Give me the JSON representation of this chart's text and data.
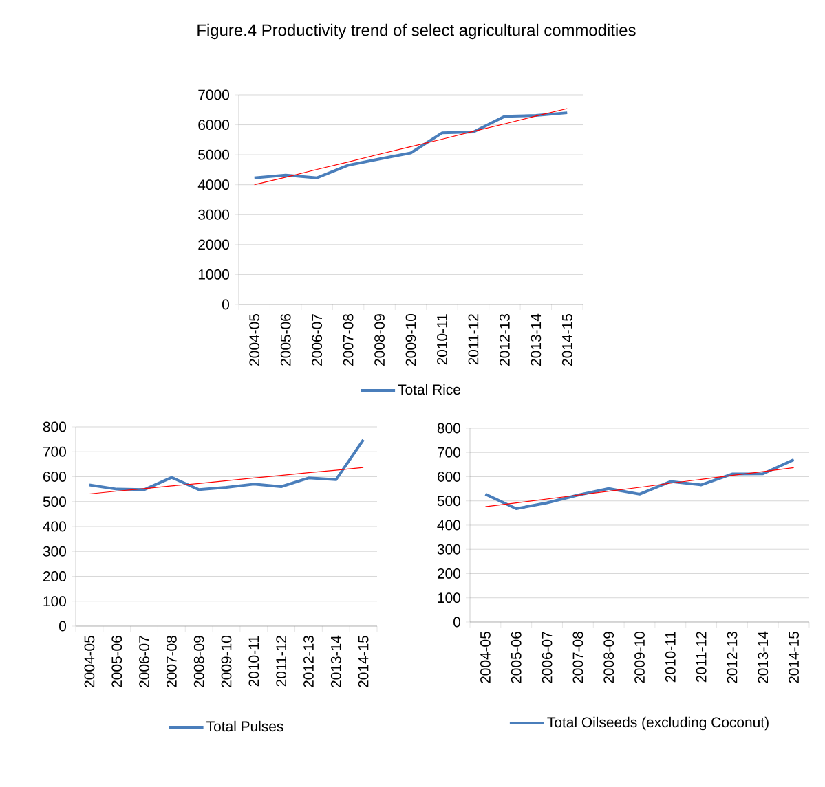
{
  "chart_data": [
    {
      "type": "line",
      "title": "Figure.4    Productivity trend of select agricultural commodities",
      "categories": [
        "2004-05",
        "2005-06",
        "2006-07",
        "2007-08",
        "2008-09",
        "2009-10",
        "2010-11",
        "2011-12",
        "2012-13",
        "2013-14",
        "2014-15"
      ],
      "series": [
        {
          "name": "Total Rice",
          "color": "#4a7ebb",
          "values": [
            4230,
            4320,
            4230,
            4650,
            4860,
            5060,
            5730,
            5760,
            6280,
            6310,
            6400
          ]
        },
        {
          "color": "#ff0000",
          "values": [
            4000,
            4250,
            4510,
            4760,
            5020,
            5270,
            5520,
            5780,
            6030,
            6290,
            6540
          ]
        }
      ],
      "ylim": [
        0,
        7000
      ],
      "yticks": [
        0,
        1000,
        2000,
        3000,
        4000,
        5000,
        6000,
        7000
      ],
      "grid": "y",
      "legend": "bottom"
    },
    {
      "type": "line",
      "categories": [
        "2004-05",
        "2005-06",
        "2006-07",
        "2007-08",
        "2008-09",
        "2009-10",
        "2010-11",
        "2011-12",
        "2012-13",
        "2013-14",
        "2014-15"
      ],
      "series": [
        {
          "name": "Total Pulses",
          "color": "#4a7ebb",
          "values": [
            567,
            550,
            548,
            597,
            548,
            557,
            570,
            560,
            595,
            588,
            748
          ]
        },
        {
          "color": "#ff0000",
          "values": [
            531,
            542,
            552,
            563,
            573,
            584,
            595,
            605,
            616,
            626,
            637
          ]
        }
      ],
      "ylim": [
        0,
        800
      ],
      "yticks": [
        0,
        100,
        200,
        300,
        400,
        500,
        600,
        700,
        800
      ],
      "grid": "y",
      "legend": "bottom"
    },
    {
      "type": "line",
      "categories": [
        "2004-05",
        "2005-06",
        "2006-07",
        "2007-08",
        "2008-09",
        "2009-10",
        "2010-11",
        "2011-12",
        "2012-13",
        "2013-14",
        "2014-15"
      ],
      "series": [
        {
          "name": "Total Oilseeds (excluding Coconut)",
          "color": "#4a7ebb",
          "values": [
            528,
            468,
            492,
            524,
            551,
            528,
            580,
            566,
            611,
            612,
            670
          ]
        },
        {
          "color": "#ff0000",
          "values": [
            476,
            492,
            508,
            524,
            540,
            556,
            573,
            589,
            605,
            621,
            637
          ]
        }
      ],
      "ylim": [
        0,
        800
      ],
      "yticks": [
        0,
        100,
        200,
        300,
        400,
        500,
        600,
        700,
        800
      ],
      "grid": "y",
      "legend": "bottom"
    }
  ]
}
